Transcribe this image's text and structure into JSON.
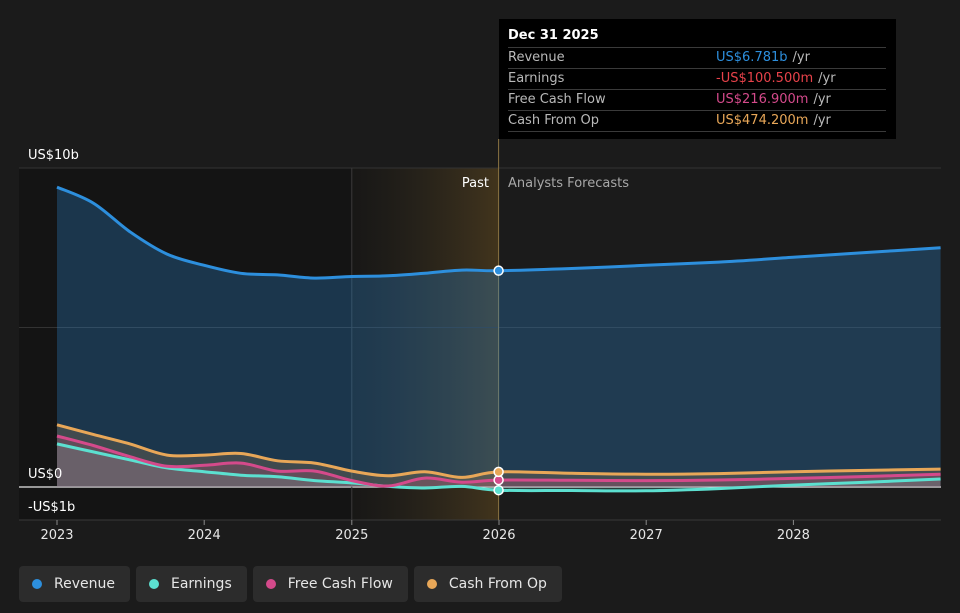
{
  "colors": {
    "revenue": "#2d8fdd",
    "earnings": "#5ce0d0",
    "free_cash_flow": "#d44a8b",
    "cash_from_op": "#e8a758",
    "background": "#1b1b1b",
    "past_highlight": "#3a3020",
    "tooltip_bg": "#000000"
  },
  "chart_data": {
    "type": "line",
    "y_unit": "US$ billions",
    "ylim": [
      -1.0,
      10.0
    ],
    "xlim": [
      "2023-01-01",
      "2028-12-31"
    ],
    "y_tick_labels": [
      {
        "value": 10,
        "label": "US$10b"
      },
      {
        "value": 0,
        "label": "US$0"
      },
      {
        "value": -1,
        "label": "-US$1b"
      }
    ],
    "x_tick_labels": [
      {
        "date": "2023-01-01",
        "label": "2023"
      },
      {
        "date": "2024-01-01",
        "label": "2024"
      },
      {
        "date": "2025-01-01",
        "label": "2025"
      },
      {
        "date": "2026-01-01",
        "label": "2026"
      },
      {
        "date": "2027-01-01",
        "label": "2027"
      },
      {
        "date": "2028-01-01",
        "label": "2028"
      }
    ],
    "grid": "horizontal",
    "past_label": "Past",
    "forecast_label": "Analysts Forecasts",
    "divider_date": "2025-12-31",
    "highlight_range": [
      "2025-01-01",
      "2025-12-31"
    ],
    "series": [
      {
        "name": "Revenue",
        "color": "#2d8fdd",
        "fill": true,
        "points": [
          [
            "2023-01-01",
            9.4
          ],
          [
            "2023-04-01",
            8.9
          ],
          [
            "2023-07-01",
            8.0
          ],
          [
            "2023-10-01",
            7.3
          ],
          [
            "2024-01-01",
            6.95
          ],
          [
            "2024-04-01",
            6.7
          ],
          [
            "2024-07-01",
            6.65
          ],
          [
            "2024-10-01",
            6.55
          ],
          [
            "2025-01-01",
            6.6
          ],
          [
            "2025-04-01",
            6.62
          ],
          [
            "2025-07-01",
            6.7
          ],
          [
            "2025-10-01",
            6.8
          ],
          [
            "2025-12-31",
            6.781
          ],
          [
            "2026-06-30",
            6.85
          ],
          [
            "2026-12-31",
            6.95
          ],
          [
            "2027-06-30",
            7.05
          ],
          [
            "2027-12-31",
            7.2
          ],
          [
            "2028-06-30",
            7.35
          ],
          [
            "2028-12-31",
            7.5
          ]
        ]
      },
      {
        "name": "Earnings",
        "color": "#5ce0d0",
        "fill": true,
        "points": [
          [
            "2023-01-01",
            1.35
          ],
          [
            "2023-04-01",
            1.1
          ],
          [
            "2023-07-01",
            0.85
          ],
          [
            "2023-10-01",
            0.6
          ],
          [
            "2024-01-01",
            0.48
          ],
          [
            "2024-04-01",
            0.37
          ],
          [
            "2024-07-01",
            0.32
          ],
          [
            "2024-10-01",
            0.2
          ],
          [
            "2025-01-01",
            0.13
          ],
          [
            "2025-04-01",
            0.02
          ],
          [
            "2025-07-01",
            -0.03
          ],
          [
            "2025-10-01",
            0.02
          ],
          [
            "2025-12-31",
            -0.1005
          ],
          [
            "2026-06-30",
            -0.11
          ],
          [
            "2026-12-31",
            -0.12
          ],
          [
            "2027-06-30",
            -0.05
          ],
          [
            "2027-12-31",
            0.06
          ],
          [
            "2028-06-30",
            0.15
          ],
          [
            "2028-12-31",
            0.25
          ]
        ]
      },
      {
        "name": "Free Cash Flow",
        "color": "#d44a8b",
        "fill": true,
        "points": [
          [
            "2023-01-01",
            1.6
          ],
          [
            "2023-04-01",
            1.3
          ],
          [
            "2023-07-01",
            0.95
          ],
          [
            "2023-10-01",
            0.65
          ],
          [
            "2024-01-01",
            0.68
          ],
          [
            "2024-04-01",
            0.75
          ],
          [
            "2024-07-01",
            0.5
          ],
          [
            "2024-10-01",
            0.5
          ],
          [
            "2025-01-01",
            0.2
          ],
          [
            "2025-04-01",
            0.03
          ],
          [
            "2025-07-01",
            0.28
          ],
          [
            "2025-10-01",
            0.15
          ],
          [
            "2025-12-31",
            0.2169
          ],
          [
            "2026-06-30",
            0.21
          ],
          [
            "2026-12-31",
            0.2
          ],
          [
            "2027-06-30",
            0.22
          ],
          [
            "2027-12-31",
            0.27
          ],
          [
            "2028-06-30",
            0.33
          ],
          [
            "2028-12-31",
            0.4
          ]
        ]
      },
      {
        "name": "Cash From Op",
        "color": "#e8a758",
        "fill": true,
        "points": [
          [
            "2023-01-01",
            1.95
          ],
          [
            "2023-04-01",
            1.65
          ],
          [
            "2023-07-01",
            1.35
          ],
          [
            "2023-10-01",
            1.0
          ],
          [
            "2024-01-01",
            1.0
          ],
          [
            "2024-04-01",
            1.05
          ],
          [
            "2024-07-01",
            0.82
          ],
          [
            "2024-10-01",
            0.75
          ],
          [
            "2025-01-01",
            0.5
          ],
          [
            "2025-04-01",
            0.35
          ],
          [
            "2025-07-01",
            0.48
          ],
          [
            "2025-10-01",
            0.3
          ],
          [
            "2025-12-31",
            0.4742
          ],
          [
            "2026-06-30",
            0.43
          ],
          [
            "2026-12-31",
            0.4
          ],
          [
            "2027-06-30",
            0.42
          ],
          [
            "2027-12-31",
            0.48
          ],
          [
            "2028-06-30",
            0.52
          ],
          [
            "2028-12-31",
            0.56
          ]
        ]
      }
    ]
  },
  "tooltip": {
    "date": "Dec 31 2025",
    "rows": [
      {
        "label": "Revenue",
        "value": "US$6.781b",
        "unit": "/yr",
        "color": "#2d8fdd"
      },
      {
        "label": "Earnings",
        "value": "-US$100.500m",
        "unit": "/yr",
        "color": "#e8424a"
      },
      {
        "label": "Free Cash Flow",
        "value": "US$216.900m",
        "unit": "/yr",
        "color": "#d44a8b"
      },
      {
        "label": "Cash From Op",
        "value": "US$474.200m",
        "unit": "/yr",
        "color": "#e8a758"
      }
    ]
  },
  "legend": [
    {
      "label": "Revenue",
      "color": "#2d8fdd"
    },
    {
      "label": "Earnings",
      "color": "#5ce0d0"
    },
    {
      "label": "Free Cash Flow",
      "color": "#d44a8b"
    },
    {
      "label": "Cash From Op",
      "color": "#e8a758"
    }
  ]
}
